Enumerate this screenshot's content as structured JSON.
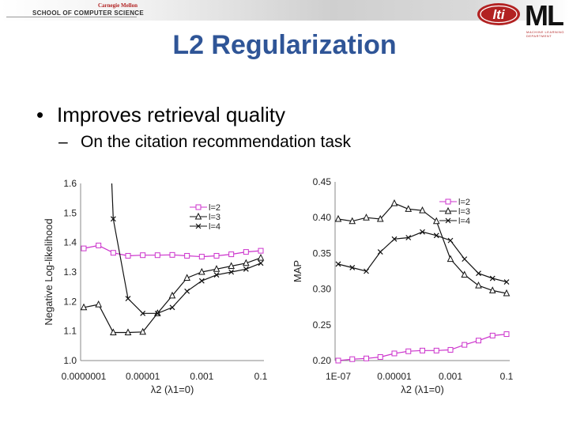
{
  "header": {
    "cmu_top": "Carnegie Mellon",
    "cmu_bottom": "SCHOOL OF COMPUTER SCIENCE",
    "lti": "lti",
    "ml": "ML",
    "ml_sub": "MACHINE LEARNING DEPARTMENT"
  },
  "title": "L2 Regularization",
  "bullet": {
    "marker": "•",
    "text": "Improves retrieval quality"
  },
  "sub_bullet": {
    "marker": "–",
    "text": "On the citation recommendation task"
  },
  "colors": {
    "title": "#2f5597",
    "magenta": "#cc33cc",
    "black": "#111111"
  },
  "chart_data": [
    {
      "type": "line",
      "ylabel": "Negative Log-likelihood",
      "xlabel": "λ2 (λ1=0)",
      "x_tick_labels": [
        "0.0000001",
        "0.00001",
        "0.001",
        "0.1"
      ],
      "y_tick_labels": [
        "1.0",
        "1.1",
        "1.2",
        "1.3",
        "1.4",
        "1.5",
        "1.6"
      ],
      "ylim": [
        1.0,
        1.6
      ],
      "x_log10_range": [
        -7,
        -1
      ],
      "legend_position": "top-right",
      "x_log10": [
        -7,
        -6.5,
        -6,
        -5.5,
        -5,
        -4.5,
        -4,
        -3.5,
        -3,
        -2.5,
        -2,
        -1.5,
        -1
      ],
      "series": [
        {
          "name": "l=2",
          "marker": "square",
          "color": "#cc33cc",
          "values": [
            1.38,
            1.39,
            1.365,
            1.355,
            1.357,
            1.357,
            1.358,
            1.355,
            1.352,
            1.355,
            1.36,
            1.368,
            1.372
          ]
        },
        {
          "name": "l=3",
          "marker": "triangle",
          "color": "#111111",
          "values": [
            1.18,
            1.19,
            1.095,
            1.095,
            1.097,
            1.16,
            1.22,
            1.28,
            1.3,
            1.31,
            1.32,
            1.33,
            1.348
          ]
        },
        {
          "name": "l=4",
          "marker": "x",
          "color": "#111111",
          "values": [
            null,
            null,
            1.48,
            1.21,
            1.16,
            1.16,
            1.18,
            1.235,
            1.27,
            1.29,
            1.3,
            1.31,
            1.33
          ]
        }
      ],
      "extra_segment": {
        "series": "l=4",
        "from": [
          -6.05,
          1.6
        ],
        "to": [
          -6,
          1.48
        ]
      }
    },
    {
      "type": "line",
      "ylabel": "MAP",
      "xlabel": "λ2 (λ1=0)",
      "x_tick_labels": [
        "1E-07",
        "0.00001",
        "0.001",
        "0.1"
      ],
      "y_tick_labels": [
        "0.20",
        "0.25",
        "0.30",
        "0.35",
        "0.40",
        "0.45"
      ],
      "ylim": [
        0.2,
        0.45
      ],
      "x_log10_range": [
        -7,
        -1
      ],
      "legend_position": "top-right",
      "x_log10": [
        -7,
        -6.5,
        -6,
        -5.5,
        -5,
        -4.5,
        -4,
        -3.5,
        -3,
        -2.5,
        -2,
        -1.5,
        -1
      ],
      "series": [
        {
          "name": "l=2",
          "marker": "square",
          "color": "#cc33cc",
          "values": [
            0.2,
            0.202,
            0.203,
            0.205,
            0.21,
            0.213,
            0.214,
            0.214,
            0.215,
            0.222,
            0.228,
            0.235,
            0.237
          ]
        },
        {
          "name": "l=3",
          "marker": "triangle",
          "color": "#111111",
          "values": [
            0.398,
            0.395,
            0.4,
            0.398,
            0.42,
            0.412,
            0.41,
            0.395,
            0.342,
            0.32,
            0.305,
            0.298,
            0.294
          ]
        },
        {
          "name": "l=4",
          "marker": "x",
          "color": "#111111",
          "values": [
            0.335,
            0.33,
            0.325,
            0.352,
            0.37,
            0.372,
            0.38,
            0.375,
            0.368,
            0.342,
            0.322,
            0.315,
            0.31
          ]
        }
      ]
    }
  ]
}
